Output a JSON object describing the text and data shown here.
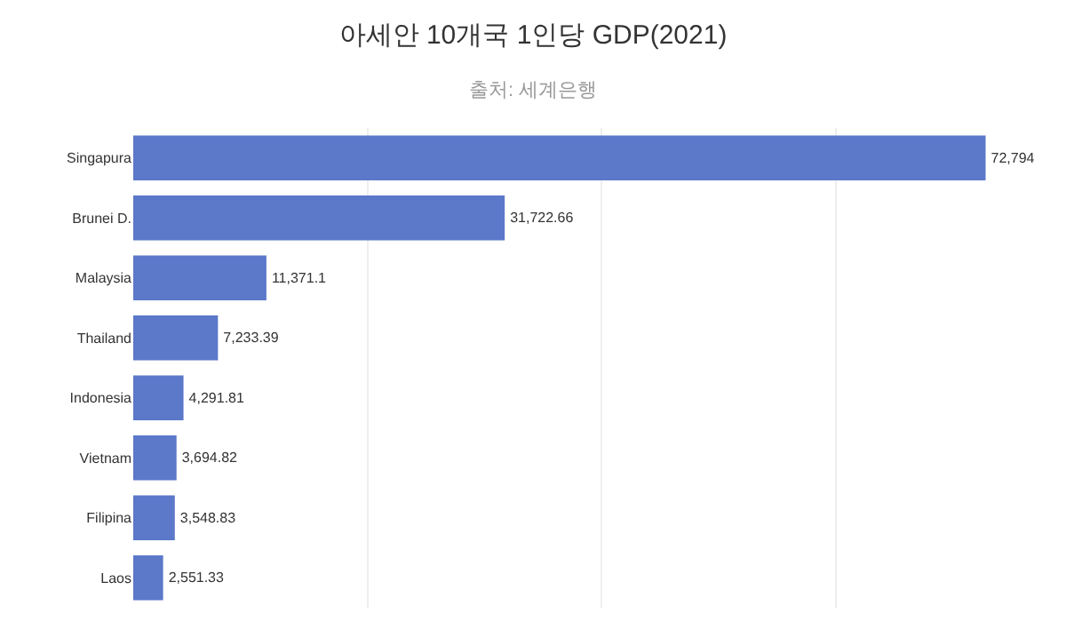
{
  "chart_data": {
    "type": "bar",
    "orientation": "horizontal",
    "title": "아세안 10개국 1인당 GDP(2021)",
    "subtitle": "출처: 세계은행",
    "categories": [
      "Singapura",
      "Brunei D.",
      "Malaysia",
      "Thailand",
      "Indonesia",
      "Vietnam",
      "Filipina",
      "Laos"
    ],
    "values": [
      72794,
      31722.66,
      11371.1,
      7233.39,
      4291.81,
      3694.82,
      3548.83,
      2551.33
    ],
    "value_labels": [
      "72,794",
      "31,722.66",
      "11,371.1",
      "7,233.39",
      "4,291.81",
      "3,694.82",
      "3,548.83",
      "2,551.33"
    ],
    "color": "#5b78c9",
    "grid": "x",
    "tick_labels": "y"
  }
}
